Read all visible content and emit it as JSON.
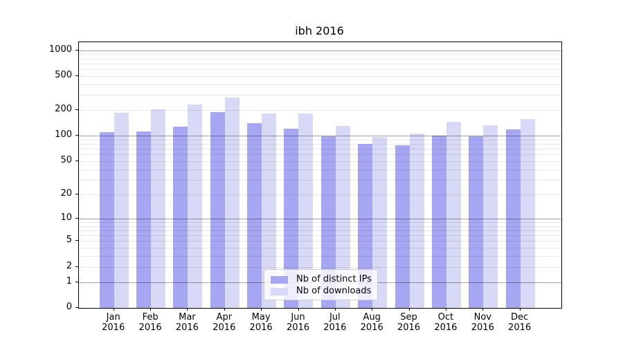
{
  "chart_data": {
    "type": "bar",
    "title": "ibh 2016",
    "categories": [
      "Jan",
      "Feb",
      "Mar",
      "Apr",
      "May",
      "Jun",
      "Jul",
      "Aug",
      "Sep",
      "Oct",
      "Nov",
      "Dec"
    ],
    "x_year": "2016",
    "series": [
      {
        "name": "Nb of distinct IPs",
        "color": "#a6a6f2",
        "values": [
          110,
          112,
          127,
          190,
          140,
          121,
          99,
          80,
          77,
          100,
          99,
          119
        ]
      },
      {
        "name": "Nb of downloads",
        "color": "#d8d8f7",
        "values": [
          187,
          204,
          231,
          278,
          184,
          182,
          131,
          97,
          107,
          145,
          133,
          157
        ]
      }
    ],
    "xlabel": "",
    "ylabel": "",
    "y_scale": {
      "type": "log1p",
      "min": 0,
      "max": 1240
    },
    "yticks": [
      0,
      1,
      2,
      5,
      10,
      20,
      50,
      100,
      200,
      500,
      1000
    ],
    "grid": {
      "which": "both",
      "major_values": [
        1,
        10,
        100,
        1000
      ]
    },
    "legend_position": "bottom-center"
  }
}
